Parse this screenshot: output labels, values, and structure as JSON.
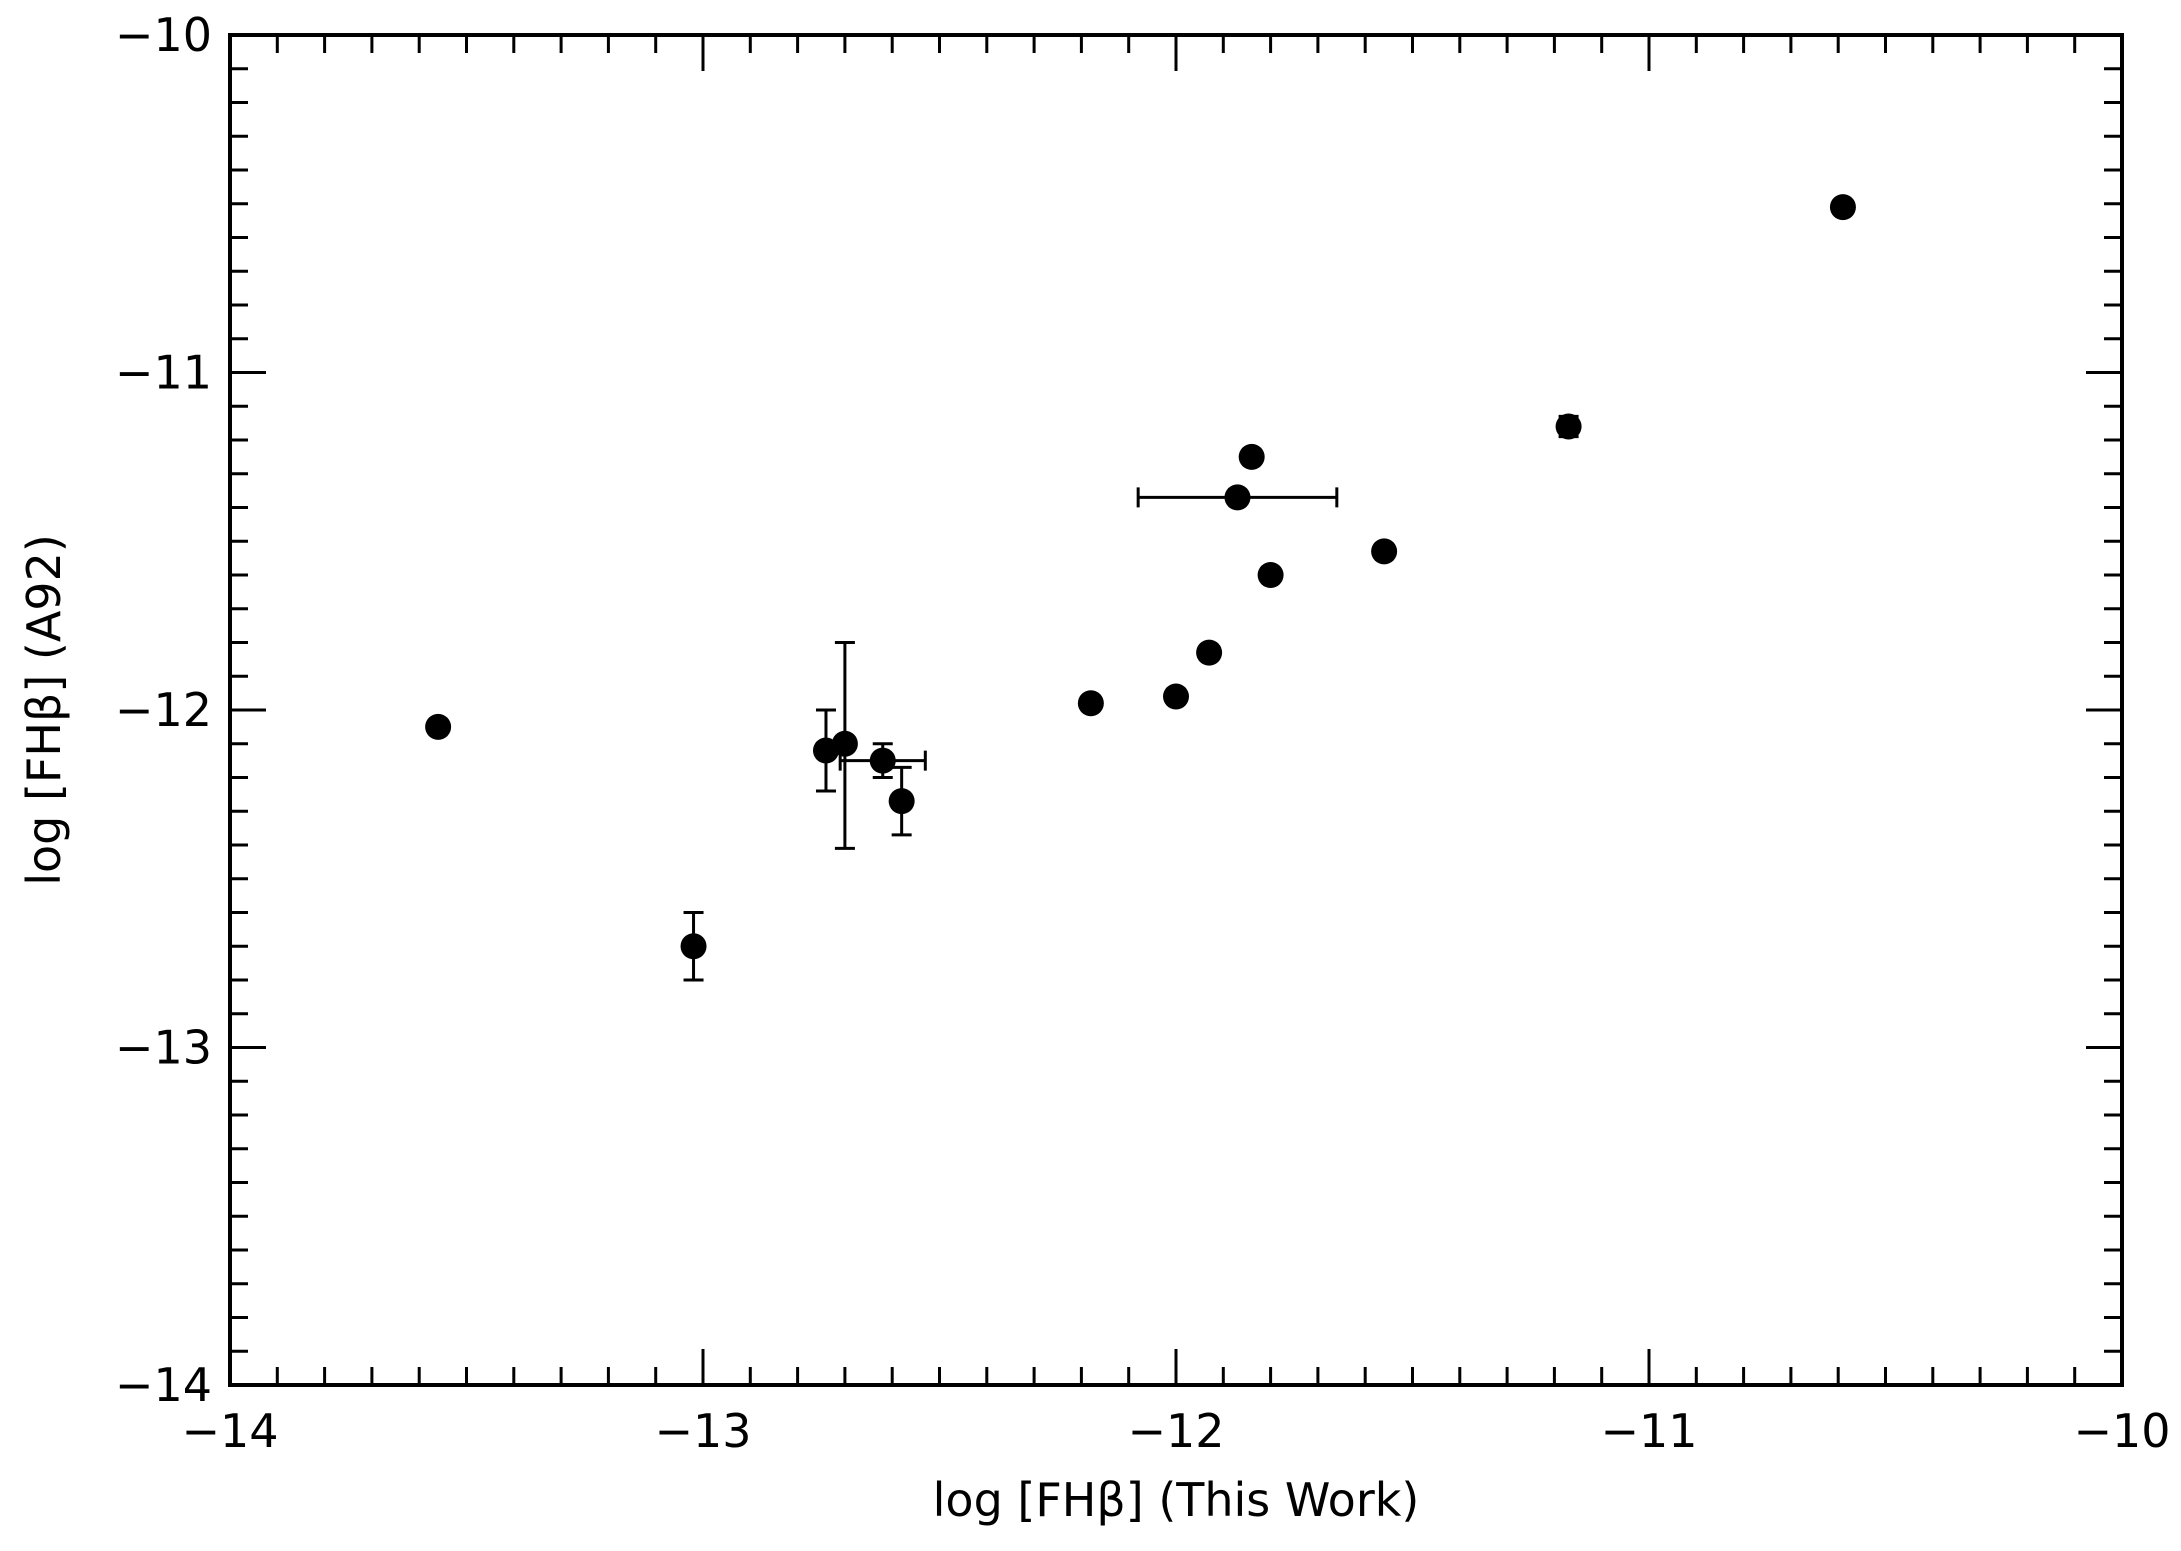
{
  "chart_data": {
    "type": "scatter",
    "title": "",
    "xlabel": "log [FHβ] (This Work)",
    "ylabel": "log [FHβ] (A92)",
    "xlim": [
      -14,
      -10
    ],
    "ylim": [
      -14,
      -10
    ],
    "x_major_ticks": [
      -14,
      -13,
      -12,
      -11,
      -10
    ],
    "y_major_ticks": [
      -14,
      -13,
      -12,
      -11,
      -10
    ],
    "x_tick_labels": [
      "−14",
      "−13",
      "−12",
      "−11",
      "−10"
    ],
    "y_tick_labels": [
      "−14",
      "−13",
      "−12",
      "−11",
      "−10"
    ],
    "minor_ticks_per_major": 10,
    "grid": false,
    "marker_color": "#000000",
    "points": [
      {
        "x": -13.56,
        "y": -12.05
      },
      {
        "x": -13.02,
        "y": -12.7,
        "yerr": [
          0.1,
          0.1
        ]
      },
      {
        "x": -12.74,
        "y": -12.12,
        "yerr": [
          0.12,
          0.12
        ]
      },
      {
        "x": -12.7,
        "y": -12.1,
        "yerr": [
          0.31,
          0.3
        ]
      },
      {
        "x": -12.62,
        "y": -12.15,
        "xerr": [
          0.09,
          0.09
        ],
        "yerr": [
          0.05,
          0.05
        ]
      },
      {
        "x": -12.58,
        "y": -12.27,
        "yerr": [
          0.1,
          0.1
        ]
      },
      {
        "x": -12.18,
        "y": -11.98,
        "yerr": [
          0.02,
          0.02
        ]
      },
      {
        "x": -12.0,
        "y": -11.96,
        "yerr": [
          0.02,
          0.02
        ]
      },
      {
        "x": -11.93,
        "y": -11.83
      },
      {
        "x": -11.87,
        "y": -11.37,
        "xerr": [
          0.21,
          0.21
        ]
      },
      {
        "x": -11.84,
        "y": -11.25
      },
      {
        "x": -11.8,
        "y": -11.6
      },
      {
        "x": -11.56,
        "y": -11.53
      },
      {
        "x": -11.17,
        "y": -11.16,
        "yerr": [
          0.03,
          0.03
        ]
      },
      {
        "x": -10.59,
        "y": -10.51
      }
    ]
  }
}
